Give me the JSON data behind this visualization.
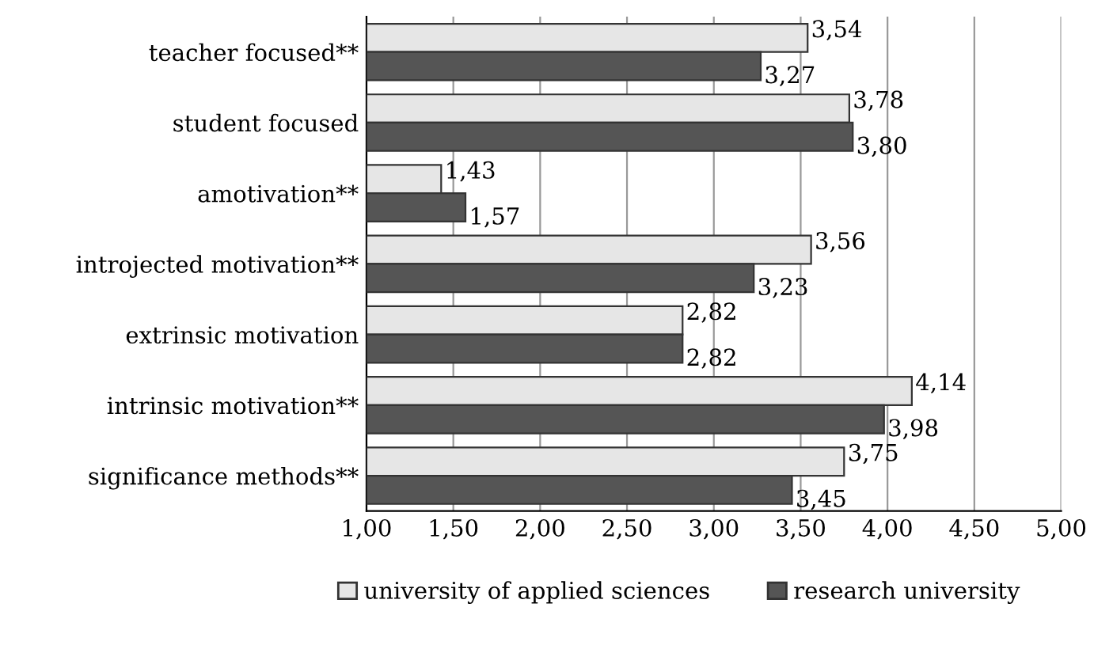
{
  "chart_data": {
    "type": "bar",
    "orientation": "horizontal",
    "categories": [
      "teacher focused**",
      "student focused",
      "amotivation**",
      "introjected motivation**",
      "extrinsic motivation",
      "intrinsic motivation**",
      "significance methods**"
    ],
    "series": [
      {
        "name": "university of applied sciences",
        "color": "#e6e6e6",
        "values": [
          3.54,
          3.78,
          1.43,
          3.56,
          2.82,
          4.14,
          3.75
        ],
        "value_labels": [
          "3,54",
          "3,78",
          "1,43",
          "3,56",
          "2,82",
          "4,14",
          "3,75"
        ]
      },
      {
        "name": "research university",
        "color": "#555555",
        "values": [
          3.27,
          3.8,
          1.57,
          3.23,
          2.82,
          3.98,
          3.45
        ],
        "value_labels": [
          "3,27",
          "3,80",
          "1,57",
          "3,23",
          "2,82",
          "3,98",
          "3,45"
        ]
      }
    ],
    "xlim": [
      1,
      5
    ],
    "xticks": [
      {
        "value": 1,
        "label": "1,00"
      },
      {
        "value": 1.5,
        "label": "1,50"
      },
      {
        "value": 2,
        "label": "2,00"
      },
      {
        "value": 2.5,
        "label": "2,50"
      },
      {
        "value": 3,
        "label": "3,00"
      },
      {
        "value": 3.5,
        "label": "3,50"
      },
      {
        "value": 4,
        "label": "4,00"
      },
      {
        "value": 4.5,
        "label": "4,50"
      },
      {
        "value": 5,
        "label": "5,00"
      }
    ],
    "grid": "x",
    "legend": "bottom"
  }
}
